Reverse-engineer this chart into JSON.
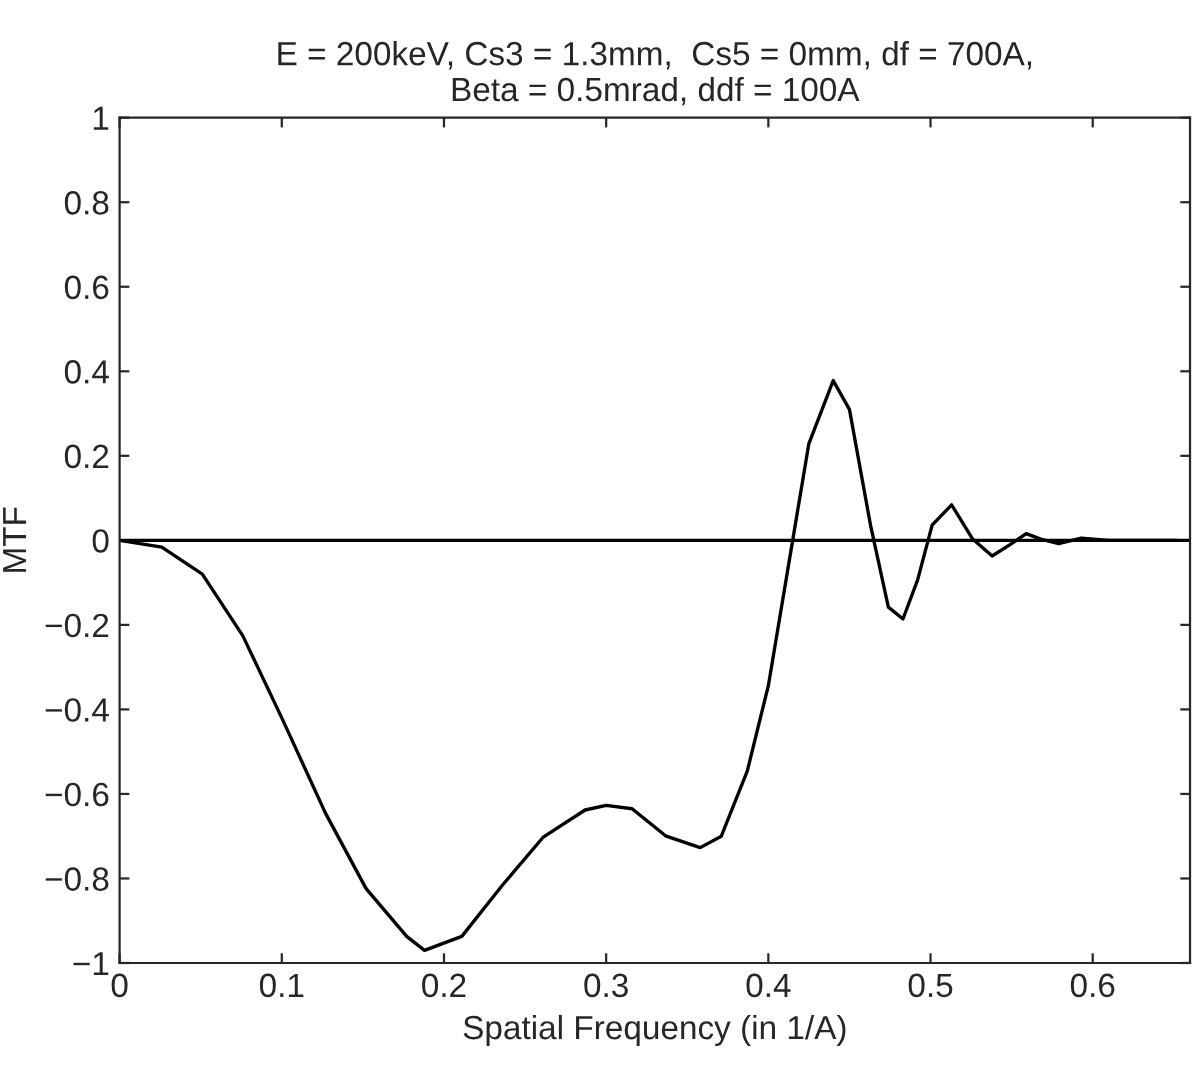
{
  "chart_data": {
    "type": "line",
    "title": "E = 200keV, Cs3 = 1.3mm,  Cs5 = 0mm, df = 700A,\nBeta = 0.5mrad, ddf = 100A",
    "xlabel": "Spatial Frequency (in 1/A)",
    "ylabel": "MTF",
    "x": [
      0,
      0.026,
      0.051,
      0.076,
      0.1,
      0.127,
      0.152,
      0.177,
      0.188,
      0.211,
      0.236,
      0.261,
      0.287,
      0.3,
      0.316,
      0.337,
      0.358,
      0.371,
      0.387,
      0.4,
      0.415,
      0.425,
      0.44,
      0.45,
      0.463,
      0.474,
      0.483,
      0.492,
      0.501,
      0.513,
      0.526,
      0.538,
      0.549,
      0.559,
      0.568,
      0.579,
      0.593,
      0.61,
      0.652
    ],
    "series": [
      {
        "color": "#000000",
        "values": [
          0,
          -0.016,
          -0.08,
          -0.226,
          -0.42,
          -0.646,
          -0.824,
          -0.937,
          -0.97,
          -0.937,
          -0.816,
          -0.703,
          -0.638,
          -0.627,
          -0.635,
          -0.7,
          -0.727,
          -0.7,
          -0.546,
          -0.344,
          0,
          0.229,
          0.378,
          0.31,
          0.036,
          -0.158,
          -0.186,
          -0.094,
          0.036,
          0.084,
          0.003,
          -0.037,
          -0.01,
          0.016,
          0.003,
          -0.008,
          0.005,
          0,
          0
        ]
      }
    ],
    "ref_lines": [
      {
        "axis": "y",
        "value": 0,
        "color": "#000000"
      }
    ],
    "xlim": [
      0,
      0.66
    ],
    "ylim": [
      -1,
      1
    ],
    "xticks": [
      0,
      0.1,
      0.2,
      0.3,
      0.4,
      0.5,
      0.6
    ],
    "yticks": [
      {
        "value": -1,
        "label": "−1"
      },
      {
        "value": -0.8,
        "label": "−0.8"
      },
      {
        "value": -0.6,
        "label": "−0.6"
      },
      {
        "value": -0.4,
        "label": "−0.4"
      },
      {
        "value": -0.2,
        "label": "−0.2"
      },
      0,
      0.2,
      0.4,
      0.6,
      0.8,
      1
    ],
    "grid": false,
    "legend": false,
    "marker": "none",
    "line_style": "solid"
  }
}
